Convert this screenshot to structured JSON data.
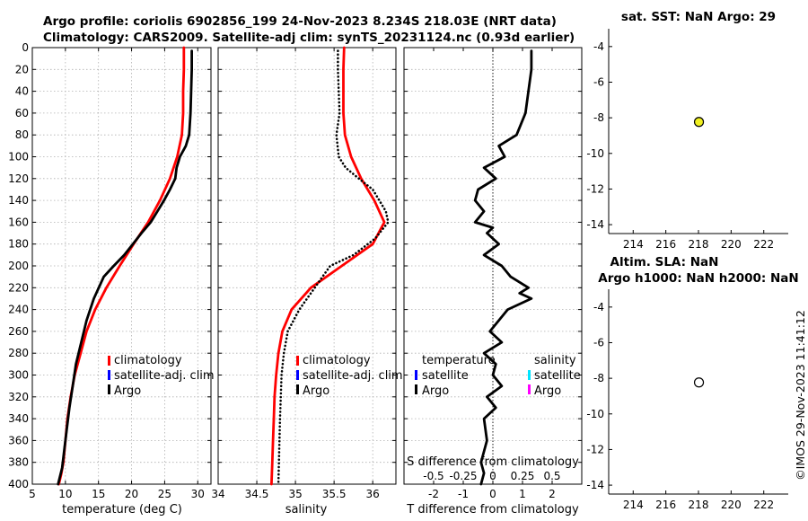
{
  "header": {
    "title_line1": "Argo profile: coriolis 6902856_199 24-Nov-2023 8.234S 218.03E (NRT data)",
    "title_line2": "Climatology: CARS2009. Satellite-adj clim: synTS_20231124.nc (0.93d earlier)"
  },
  "colors": {
    "climatology": "#ff0000",
    "satellite_adj_clim": "#0000ff",
    "argo": "#000000",
    "satellite_salinity": "#00e5ff",
    "argo_salinity": "#ff00ff",
    "marker_sst": "#f0f020",
    "grid": "#b0b0b0"
  },
  "chart_data": [
    {
      "id": "temperature",
      "type": "line",
      "xlabel": "temperature (deg C)",
      "ylabel": "depth",
      "xlim": [
        5,
        32
      ],
      "ylim": [
        0,
        400
      ],
      "xticks": [
        5,
        10,
        15,
        20,
        25,
        30
      ],
      "yticks": [
        0,
        20,
        40,
        60,
        80,
        100,
        120,
        140,
        160,
        180,
        200,
        220,
        240,
        260,
        280,
        300,
        320,
        340,
        360,
        380,
        400
      ],
      "legend": [
        "climatology",
        "satellite-adj. clim",
        "Argo"
      ],
      "series": [
        {
          "name": "climatology",
          "color": "#ff0000",
          "x": [
            27.9,
            27.9,
            27.8,
            27.8,
            27.6,
            26.9,
            25.8,
            24.3,
            22.5,
            20.3,
            18.2,
            16.2,
            14.5,
            13.2,
            12.3,
            11.4,
            10.8,
            10.3,
            10.0,
            9.7,
            9.4,
            9.2,
            9.0
          ],
          "y": [
            0,
            20,
            40,
            60,
            80,
            100,
            120,
            140,
            160,
            180,
            200,
            220,
            240,
            260,
            280,
            300,
            320,
            340,
            360,
            380,
            390,
            395,
            400
          ]
        },
        {
          "name": "Argo",
          "color": "#000000",
          "x": [
            29.1,
            29.1,
            29.0,
            28.9,
            28.7,
            28.2,
            27.3,
            26.8,
            26.6,
            25.8,
            24.9,
            23.9,
            22.9,
            21.5,
            20.2,
            18.9,
            17.3,
            15.8,
            14.3,
            13.2,
            12.4,
            11.6,
            11.1,
            10.6,
            10.2,
            9.8,
            9.5,
            9.1,
            8.9
          ],
          "y": [
            3,
            20,
            40,
            60,
            80,
            90,
            100,
            110,
            120,
            130,
            140,
            150,
            160,
            170,
            180,
            190,
            200,
            210,
            230,
            250,
            270,
            290,
            310,
            330,
            350,
            370,
            385,
            395,
            400
          ]
        }
      ]
    },
    {
      "id": "salinity",
      "type": "line",
      "xlabel": "salinity",
      "ylabel": "depth",
      "xlim": [
        34,
        36.3
      ],
      "ylim": [
        0,
        400
      ],
      "xticks": [
        34,
        34.5,
        35,
        35.5,
        36
      ],
      "legend": [
        "climatology",
        "satellite-adj. clim",
        "Argo"
      ],
      "series": [
        {
          "name": "climatology",
          "color": "#ff0000",
          "x": [
            35.63,
            35.62,
            35.62,
            35.62,
            35.64,
            35.72,
            35.85,
            36.02,
            36.15,
            36.0,
            35.6,
            35.2,
            34.95,
            34.83,
            34.78,
            34.75,
            34.73,
            34.72,
            34.71,
            34.7,
            34.69
          ],
          "y": [
            0,
            20,
            40,
            60,
            80,
            100,
            120,
            140,
            160,
            180,
            200,
            220,
            240,
            260,
            280,
            300,
            320,
            340,
            360,
            380,
            400
          ]
        },
        {
          "name": "Argo",
          "color": "#000000",
          "style": "dotted",
          "x": [
            35.55,
            35.55,
            35.56,
            35.57,
            35.53,
            35.56,
            35.65,
            35.82,
            36.0,
            36.17,
            36.2,
            36.03,
            35.75,
            35.45,
            35.25,
            35.05,
            34.9,
            34.85,
            34.82,
            34.8,
            34.79,
            34.78
          ],
          "y": [
            3,
            20,
            40,
            60,
            80,
            100,
            110,
            120,
            130,
            150,
            160,
            175,
            190,
            200,
            220,
            240,
            260,
            280,
            300,
            340,
            370,
            400
          ]
        }
      ]
    },
    {
      "id": "difference",
      "type": "line",
      "xlabel": "T difference from climatology",
      "xlabel_top": "S difference from climatology",
      "xlim": [
        -3,
        3
      ],
      "ylim": [
        0,
        400
      ],
      "xticks": [
        -2,
        -1,
        0,
        1,
        2
      ],
      "s_ticks": [
        "-0.5",
        "-0.25",
        "0",
        "0.25",
        "0.5"
      ],
      "legend_temperature": {
        "title": "temperature",
        "items": [
          "satellite",
          "Argo"
        ]
      },
      "legend_salinity": {
        "title": "salinity",
        "items": [
          "satellite",
          "Argo"
        ]
      },
      "series": [
        {
          "name": "Argo T difference",
          "color": "#000000",
          "x": [
            1.3,
            1.3,
            1.2,
            1.1,
            0.8,
            0.2,
            0.4,
            -0.3,
            0.1,
            -0.5,
            -0.6,
            -0.3,
            -0.6,
            0.0,
            -0.2,
            0.2,
            -0.3,
            0.3,
            0.6,
            1.2,
            0.9,
            1.3,
            0.5,
            0.2,
            -0.1,
            0.3,
            -0.3,
            0.1,
            0.0,
            0.3,
            -0.2,
            0.1,
            -0.3,
            -0.2,
            -0.4,
            -0.3,
            -0.4
          ],
          "y": [
            3,
            20,
            40,
            60,
            80,
            90,
            100,
            110,
            120,
            130,
            140,
            150,
            160,
            165,
            170,
            180,
            190,
            200,
            210,
            220,
            225,
            230,
            240,
            250,
            260,
            270,
            280,
            290,
            300,
            310,
            320,
            330,
            340,
            360,
            380,
            390,
            400
          ]
        }
      ]
    },
    {
      "id": "sst_map",
      "type": "scatter",
      "title": "sat. SST: NaN Argo: 29",
      "xlim": [
        212.5,
        223.5
      ],
      "ylim": [
        -14.5,
        -3
      ],
      "xticks": [
        214,
        216,
        218,
        220,
        222
      ],
      "yticks": [
        -14,
        -12,
        -10,
        -8,
        -6,
        -4
      ],
      "points": [
        {
          "x": 218.03,
          "y": -8.234,
          "fill": "#f0f020"
        }
      ]
    },
    {
      "id": "sla_map",
      "type": "scatter",
      "title_line1": "Altim. SLA: NaN",
      "title_line2": "Argo h1000: NaN h2000: NaN",
      "xlim": [
        212.5,
        223.5
      ],
      "ylim": [
        -14.5,
        -3
      ],
      "xticks": [
        214,
        216,
        218,
        220,
        222
      ],
      "yticks": [
        -14,
        -12,
        -10,
        -8,
        -6,
        -4
      ],
      "points": [
        {
          "x": 218.03,
          "y": -8.234,
          "fill": "#ffffff"
        }
      ]
    }
  ],
  "stamp": "©IMOS 29-Nov-2023 11:41:12"
}
